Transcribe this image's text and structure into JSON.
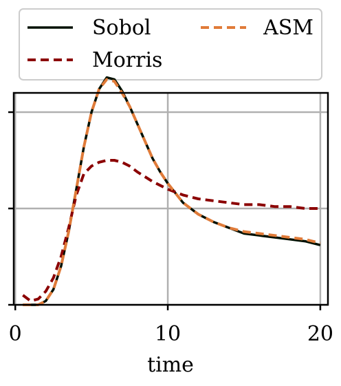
{
  "chart_data": {
    "type": "line",
    "title": "",
    "xlabel": "time",
    "ylabel": "",
    "xlim": [
      -0.1,
      20.5
    ],
    "ylim": [
      0.0,
      1.1
    ],
    "xticks": [
      0,
      10,
      20
    ],
    "xtick_labels": [
      "0",
      "10",
      "20"
    ],
    "yticks": [
      0.0,
      0.5,
      1.0
    ],
    "grid": true,
    "legend_position": "top",
    "legend_columns": 2,
    "series": [
      {
        "name": "Sobol",
        "color": "#001000",
        "dash": "solid",
        "x": [
          0.5,
          1.0,
          1.5,
          2.0,
          2.5,
          3.0,
          3.5,
          4.0,
          4.5,
          5.0,
          5.5,
          6.0,
          6.5,
          7.0,
          7.5,
          8.0,
          8.5,
          9.0,
          9.5,
          10.0,
          11.0,
          12.0,
          13.0,
          14.0,
          15.0,
          16.0,
          17.0,
          18.0,
          19.0,
          20.0
        ],
        "y": [
          0.0,
          0.0,
          0.0,
          0.02,
          0.08,
          0.2,
          0.38,
          0.6,
          0.82,
          1.0,
          1.12,
          1.18,
          1.17,
          1.11,
          1.03,
          0.94,
          0.85,
          0.76,
          0.69,
          0.63,
          0.53,
          0.47,
          0.43,
          0.4,
          0.37,
          0.36,
          0.35,
          0.34,
          0.33,
          0.31
        ]
      },
      {
        "name": "Morris",
        "color": "#8b0000",
        "dash": "dashed",
        "x": [
          0.5,
          1.0,
          1.5,
          2.0,
          2.5,
          3.0,
          3.5,
          4.0,
          4.5,
          5.0,
          5.5,
          6.0,
          6.5,
          7.0,
          7.5,
          8.0,
          9.0,
          10.0,
          11.0,
          12.0,
          13.0,
          14.0,
          15.0,
          16.0,
          17.0,
          18.0,
          19.0,
          20.0
        ],
        "y": [
          0.05,
          0.02,
          0.03,
          0.07,
          0.14,
          0.25,
          0.4,
          0.57,
          0.68,
          0.72,
          0.74,
          0.75,
          0.75,
          0.74,
          0.72,
          0.69,
          0.64,
          0.6,
          0.57,
          0.55,
          0.54,
          0.53,
          0.52,
          0.52,
          0.51,
          0.51,
          0.5,
          0.5
        ]
      },
      {
        "name": "ASM",
        "color": "#e07b39",
        "dash": "dashed",
        "x": [
          0.5,
          1.0,
          1.5,
          2.0,
          2.5,
          3.0,
          3.5,
          4.0,
          4.5,
          5.0,
          5.5,
          6.0,
          6.5,
          7.0,
          7.5,
          8.0,
          8.5,
          9.0,
          9.5,
          10.0,
          11.0,
          12.0,
          13.0,
          14.0,
          15.0,
          16.0,
          17.0,
          18.0,
          19.0,
          20.0
        ],
        "y": [
          0.0,
          0.0,
          0.0,
          0.02,
          0.08,
          0.2,
          0.38,
          0.6,
          0.82,
          1.0,
          1.12,
          1.17,
          1.16,
          1.1,
          1.03,
          0.94,
          0.85,
          0.76,
          0.69,
          0.63,
          0.53,
          0.47,
          0.43,
          0.4,
          0.38,
          0.37,
          0.36,
          0.35,
          0.34,
          0.32
        ]
      }
    ]
  }
}
